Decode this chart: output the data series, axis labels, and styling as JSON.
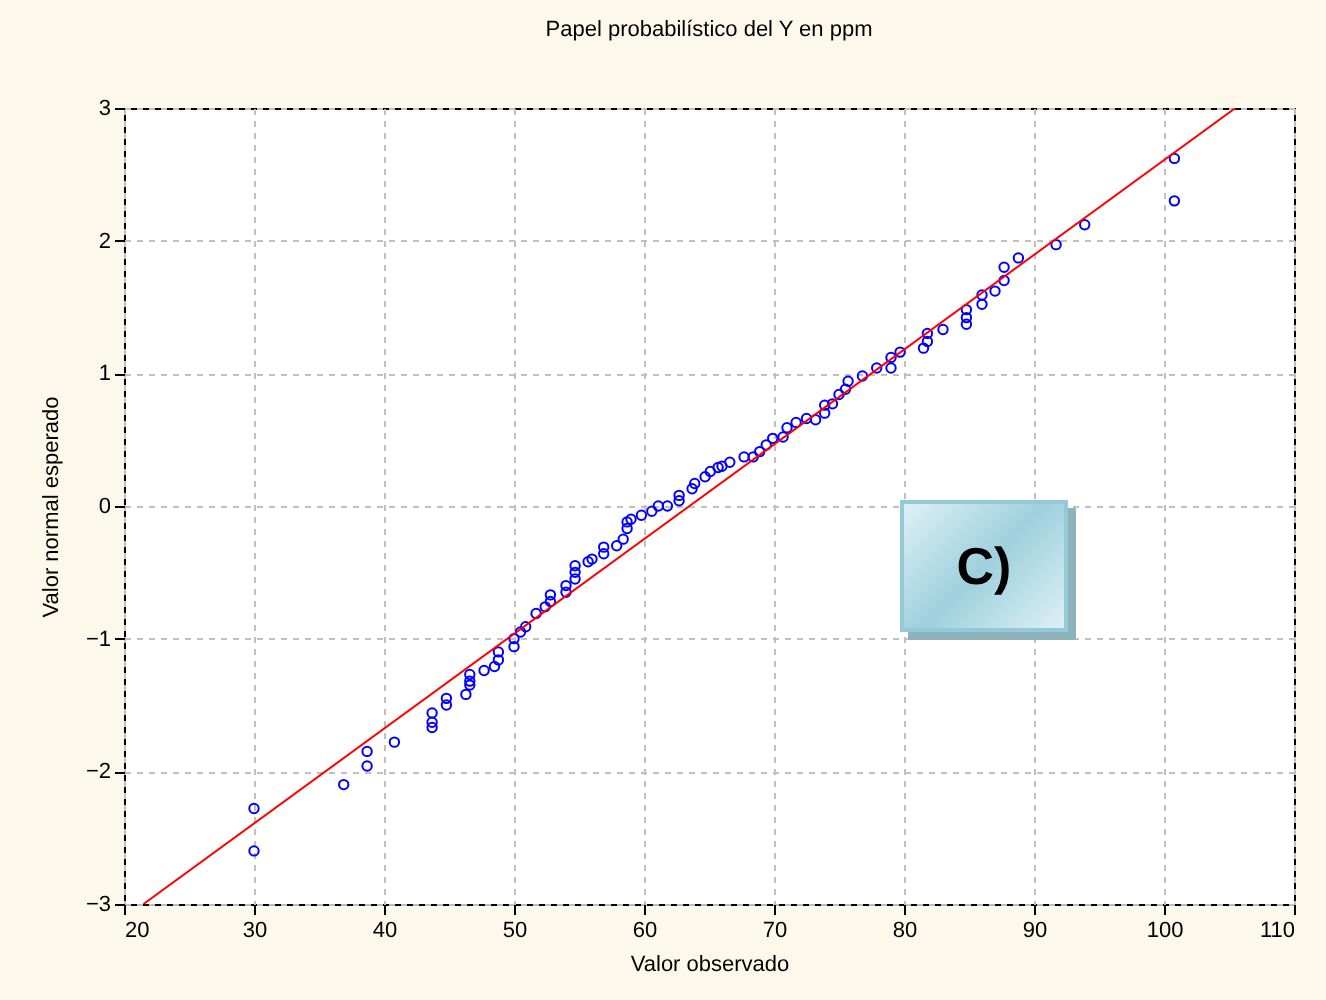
{
  "chart_data": {
    "type": "scatter",
    "title": "Papel probabilístico del Y en ppm",
    "xlabel": "Valor observado",
    "ylabel": "Valor normal esperado",
    "xlim": [
      20,
      110
    ],
    "xticks": [
      20,
      30,
      40,
      50,
      60,
      70,
      80,
      90,
      100,
      110
    ],
    "ylim": [
      -3,
      3
    ],
    "yticks": [
      -3,
      -2,
      -1,
      0,
      1,
      2,
      3
    ],
    "grid": true,
    "annotations": [
      "C)"
    ],
    "series": [
      {
        "marker": "circle",
        "color": "#0000ff",
        "x": [
          30,
          30,
          36.9,
          38.7,
          38.7,
          40.8,
          43.7,
          43.7,
          43.7,
          44.8,
          44.8,
          46.3,
          46.6,
          46.6,
          46.6,
          47.7,
          48.5,
          48.8,
          48.8,
          50,
          50,
          50.5,
          50.9,
          51.7,
          52.4,
          52.8,
          52.8,
          54,
          54,
          54.7,
          54.7,
          54.7,
          55.7,
          56,
          56.9,
          56.9,
          57.9,
          58.4,
          58.7,
          58.7,
          59,
          59.8,
          60.6,
          61.1,
          61.8,
          62.7,
          62.7,
          63.7,
          63.9,
          64.7,
          65.1,
          65.7,
          66,
          66.6,
          67.7,
          68.4,
          68.9,
          69.4,
          69.9,
          70.7,
          71,
          71.7,
          72.5,
          73.2,
          73.9,
          73.9,
          74.5,
          75,
          75.5,
          75.7,
          76.8,
          77.9,
          79,
          79,
          79.7,
          81.5,
          81.8,
          81.8,
          83,
          84.8,
          84.8,
          84.8,
          86,
          86,
          87,
          87.7,
          87.7,
          88.8,
          91.7,
          93.9,
          100.8,
          100.8
        ],
        "values": [
          -2.6,
          -2.28,
          -2.1,
          -1.96,
          -1.85,
          -1.78,
          -1.67,
          -1.63,
          -1.56,
          -1.5,
          -1.45,
          -1.42,
          -1.35,
          -1.32,
          -1.27,
          -1.24,
          -1.21,
          -1.16,
          -1.1,
          -1.06,
          -1,
          -0.95,
          -0.91,
          -0.81,
          -0.76,
          -0.72,
          -0.67,
          -0.65,
          -0.6,
          -0.55,
          -0.5,
          -0.45,
          -0.42,
          -0.4,
          -0.36,
          -0.31,
          -0.3,
          -0.25,
          -0.17,
          -0.12,
          -0.1,
          -0.07,
          -0.04,
          0,
          0,
          0.04,
          0.08,
          0.13,
          0.17,
          0.22,
          0.26,
          0.29,
          0.3,
          0.33,
          0.37,
          0.37,
          0.41,
          0.46,
          0.51,
          0.52,
          0.59,
          0.63,
          0.66,
          0.65,
          0.7,
          0.76,
          0.77,
          0.84,
          0.88,
          0.94,
          0.98,
          1.04,
          1.04,
          1.12,
          1.16,
          1.19,
          1.24,
          1.3,
          1.33,
          1.37,
          1.42,
          1.48,
          1.52,
          1.59,
          1.62,
          1.7,
          1.8,
          1.87,
          1.97,
          2.12,
          2.3,
          2.62
        ]
      },
      {
        "type": "line",
        "color": "#ff0000",
        "x": [
          21.5,
          105.5
        ],
        "values": [
          -3,
          3
        ]
      }
    ]
  }
}
